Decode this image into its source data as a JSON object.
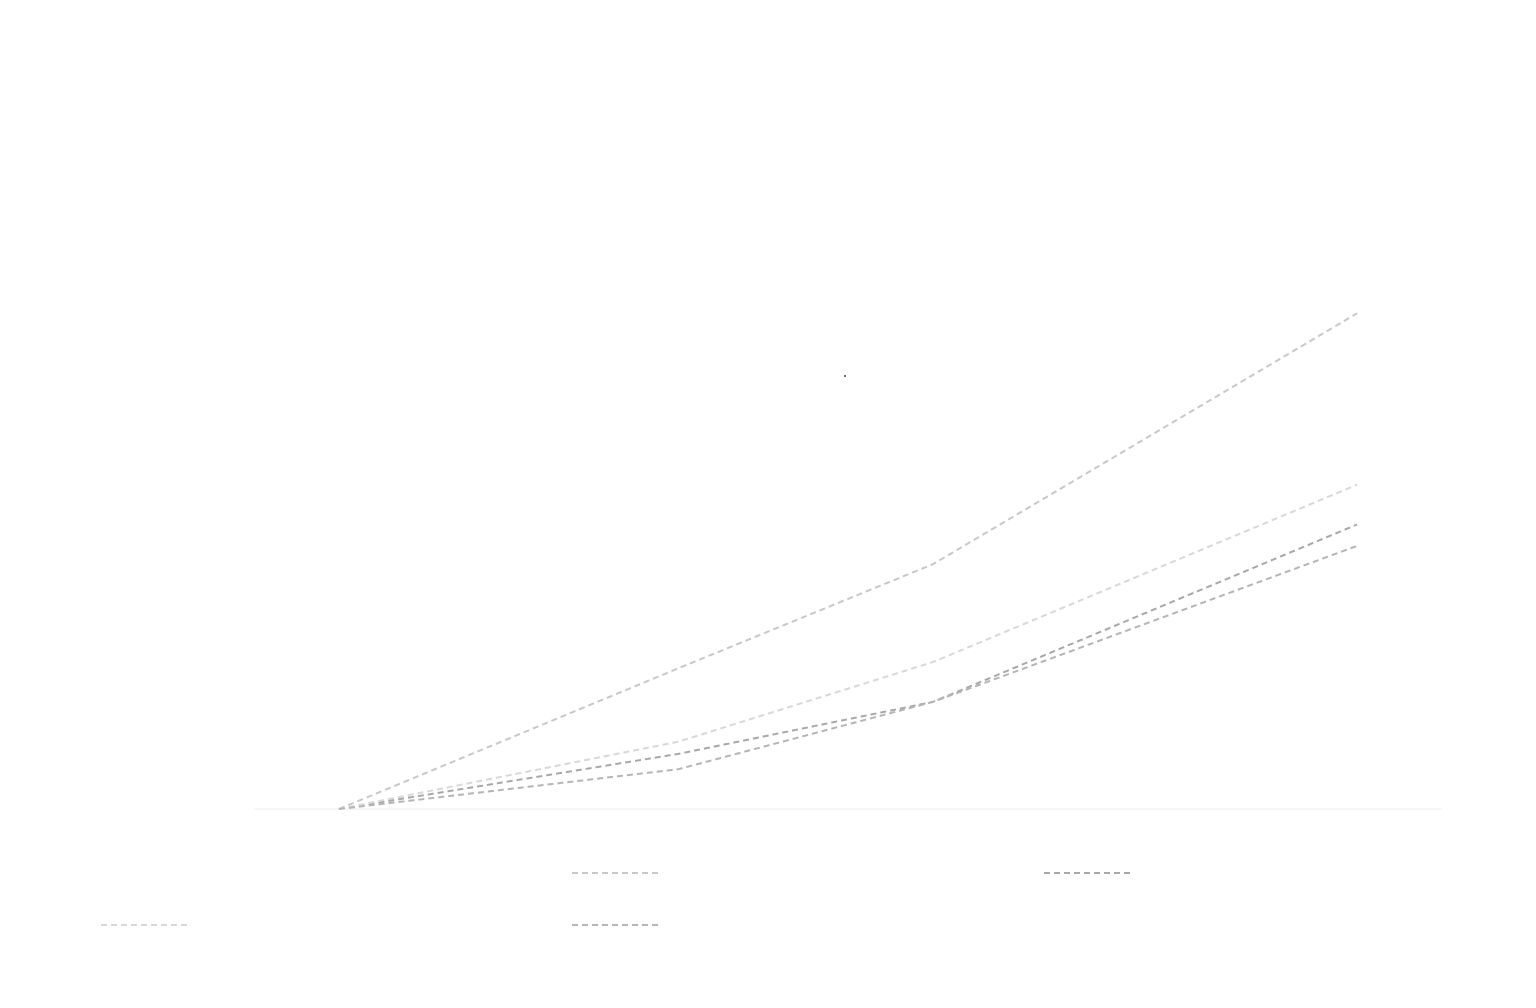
{
  "chart_data": {
    "type": "line",
    "title": "",
    "xlabel": "",
    "ylabel": "",
    "x": [
      0,
      2,
      3.5,
      6
    ],
    "xlim": [
      -0.5,
      6.5
    ],
    "ylim": [
      0,
      2.35
    ],
    "grid": false,
    "legend_placement": "bottom",
    "series": [
      {
        "color": "#c8c8c8",
        "values": [
          0,
          0.46,
          0.8,
          1.62
        ]
      },
      {
        "color": "#a8a8a8",
        "values": [
          0,
          0.18,
          0.35,
          0.93
        ]
      },
      {
        "color": "#d8d8d8",
        "values": [
          0,
          0.22,
          0.48,
          1.06
        ]
      },
      {
        "color": "#b5b5b5",
        "values": [
          0,
          0.13,
          0.35,
          0.86
        ]
      }
    ]
  }
}
